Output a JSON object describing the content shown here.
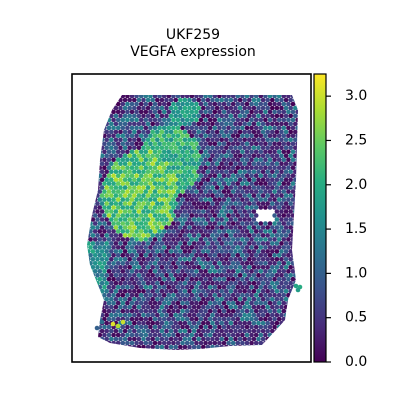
{
  "chart_data": {
    "type": "heatmap",
    "title": "UKF259",
    "subtitle": "VEGFA expression",
    "xlabel": "",
    "ylabel": "",
    "colorbar": {
      "colormap": "viridis",
      "range": [
        0.0,
        3.25
      ],
      "ticks": [
        0.0,
        0.5,
        1.0,
        1.5,
        2.0,
        2.5,
        3.0
      ],
      "tick_labels": [
        "0.0",
        "0.5",
        "1.0",
        "1.5",
        "2.0",
        "2.5",
        "3.0"
      ]
    },
    "grid": false,
    "legend": "colorbar-right",
    "colors": {
      "low": "#440154",
      "mid": "#21918c",
      "high": "#fde725"
    }
  }
}
